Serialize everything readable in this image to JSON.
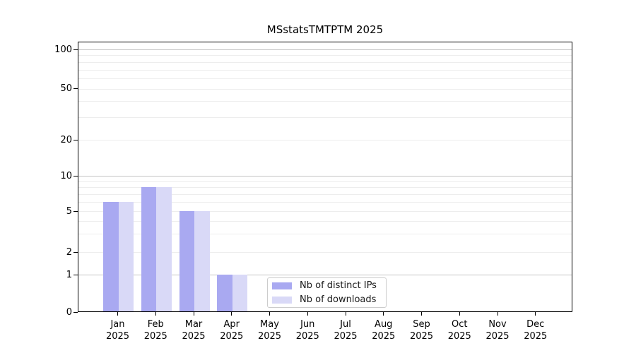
{
  "chart_data": {
    "type": "bar",
    "title": "MSstatsTMTPTM 2025",
    "year": "2025",
    "categories": [
      "Jan",
      "Feb",
      "Mar",
      "Apr",
      "May",
      "Jun",
      "Jul",
      "Aug",
      "Sep",
      "Oct",
      "Nov",
      "Dec"
    ],
    "series": [
      {
        "name": "Nb of distinct IPs",
        "color": "#a9a9f1",
        "values": [
          6,
          8,
          5,
          1,
          0,
          0,
          0,
          0,
          0,
          0,
          0,
          0
        ]
      },
      {
        "name": "Nb of downloads",
        "color": "#d9d9f7",
        "values": [
          6,
          8,
          5,
          1,
          0,
          0,
          0,
          0,
          0,
          0,
          0,
          0
        ]
      }
    ],
    "y_ticks": [
      0,
      1,
      2,
      5,
      10,
      20,
      50,
      100
    ],
    "ylim": [
      0,
      100
    ],
    "yscale": "log-like with zero baseline",
    "grid": "horizontal major+minor",
    "legend_position": "bottom-center",
    "xlabel": "",
    "ylabel": ""
  }
}
